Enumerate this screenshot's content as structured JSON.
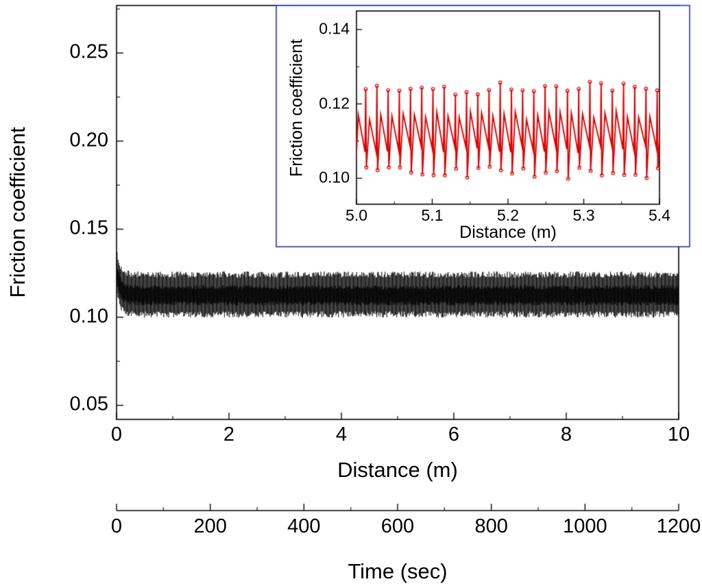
{
  "figure": {
    "background": "#ffffff",
    "axis_color": "#000000"
  },
  "chart_data": {
    "type": "line",
    "title": "",
    "main_plot": {
      "xlabel": "Distance (m)",
      "ylabel": "Friction coefficient",
      "xlim": [
        0,
        10
      ],
      "ylim": [
        0.042,
        0.277
      ],
      "xtick_labels": [
        "0",
        "2",
        "4",
        "6",
        "8",
        "10"
      ],
      "ytick_labels": [
        "0.05",
        "0.10",
        "0.15",
        "0.20",
        "0.25"
      ],
      "grid": false,
      "legend": "none",
      "series": [
        {
          "name": "friction-vs-distance",
          "color": "#000000",
          "style": "dense stick-slip oscillation band",
          "band_top": 0.1245,
          "band_bottom": 0.1015,
          "initial_peak": 0.138,
          "steady_mean": 0.113
        }
      ]
    },
    "time_axis": {
      "label": "Time (sec)",
      "xlim": [
        0,
        1200
      ],
      "xtick_labels": [
        "0",
        "200",
        "400",
        "600",
        "800",
        "1000",
        "1200"
      ]
    },
    "inset_plot": {
      "xlabel": "Distance (m)",
      "ylabel": "Friction coefficient",
      "xlim": [
        5.0,
        5.4
      ],
      "ylim": [
        0.093,
        0.145
      ],
      "xtick_labels": [
        "5.0",
        "5.1",
        "5.2",
        "5.3",
        "5.4"
      ],
      "ytick_labels": [
        "0.10",
        "0.12",
        "0.14"
      ],
      "series_color": "#e00000",
      "border_color": "#2233bb",
      "marker": "open-circle"
    },
    "signal_model": {
      "period_m": 0.0148,
      "upper_base": 0.117,
      "lower_base": 0.1078,
      "peak": 0.1242,
      "trough": 0.1016,
      "noise": 0.0012,
      "peak_noise": 0.0018,
      "transient_amp": 0.0133,
      "transient_decay": 0.07,
      "seed": 42
    }
  }
}
